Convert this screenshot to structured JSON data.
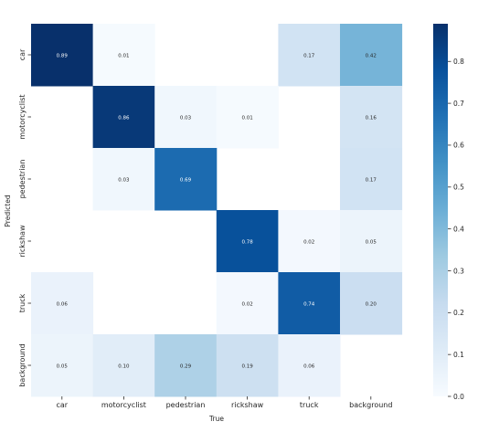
{
  "chart_data": {
    "type": "heatmap",
    "xlabel": "True",
    "ylabel": "Predicted",
    "x_categories": [
      "car",
      "motorcyclist",
      "pedestrian",
      "rickshaw",
      "truck",
      "background"
    ],
    "y_categories": [
      "car",
      "motorcyclist",
      "pedestrian",
      "rickshaw",
      "truck",
      "background"
    ],
    "values": [
      [
        0.89,
        0.01,
        null,
        null,
        0.17,
        0.42
      ],
      [
        null,
        0.86,
        0.03,
        0.01,
        null,
        0.16
      ],
      [
        null,
        0.03,
        0.69,
        null,
        null,
        0.17
      ],
      [
        null,
        null,
        null,
        0.78,
        0.02,
        0.05
      ],
      [
        0.06,
        null,
        null,
        0.02,
        0.74,
        0.2
      ],
      [
        0.05,
        0.1,
        0.29,
        0.19,
        0.06,
        null
      ]
    ],
    "value_labels": [
      [
        "0.89",
        "0.01",
        "",
        "",
        "0.17",
        "0.42"
      ],
      [
        "",
        "0.86",
        "0.03",
        "0.01",
        "",
        "0.16"
      ],
      [
        "",
        "0.03",
        "0.69",
        "",
        "",
        "0.17"
      ],
      [
        "",
        "",
        "",
        "0.78",
        "0.02",
        "0.05"
      ],
      [
        "0.06",
        "",
        "",
        "0.02",
        "0.74",
        "0.20"
      ],
      [
        "0.05",
        "0.10",
        "0.29",
        "0.19",
        "0.06",
        ""
      ]
    ],
    "colormap": "Blues",
    "colormap_stops": [
      "#f7fbff",
      "#deebf7",
      "#c6dbef",
      "#9ecae1",
      "#6baed6",
      "#4292c6",
      "#2171b5",
      "#08519c",
      "#08306b"
    ],
    "vmin": 0.0,
    "vmax": 0.89,
    "colorbar_ticks": [
      0.0,
      0.1,
      0.2,
      0.3,
      0.4,
      0.5,
      0.6,
      0.7,
      0.8
    ],
    "colorbar_tick_labels": [
      "0.0",
      "0.1",
      "0.2",
      "0.3",
      "0.4",
      "0.5",
      "0.6",
      "0.7",
      "0.8"
    ],
    "dark_text_color": "#262626",
    "light_text_color": "#ffffff",
    "threshold_for_light_text": 0.5
  }
}
